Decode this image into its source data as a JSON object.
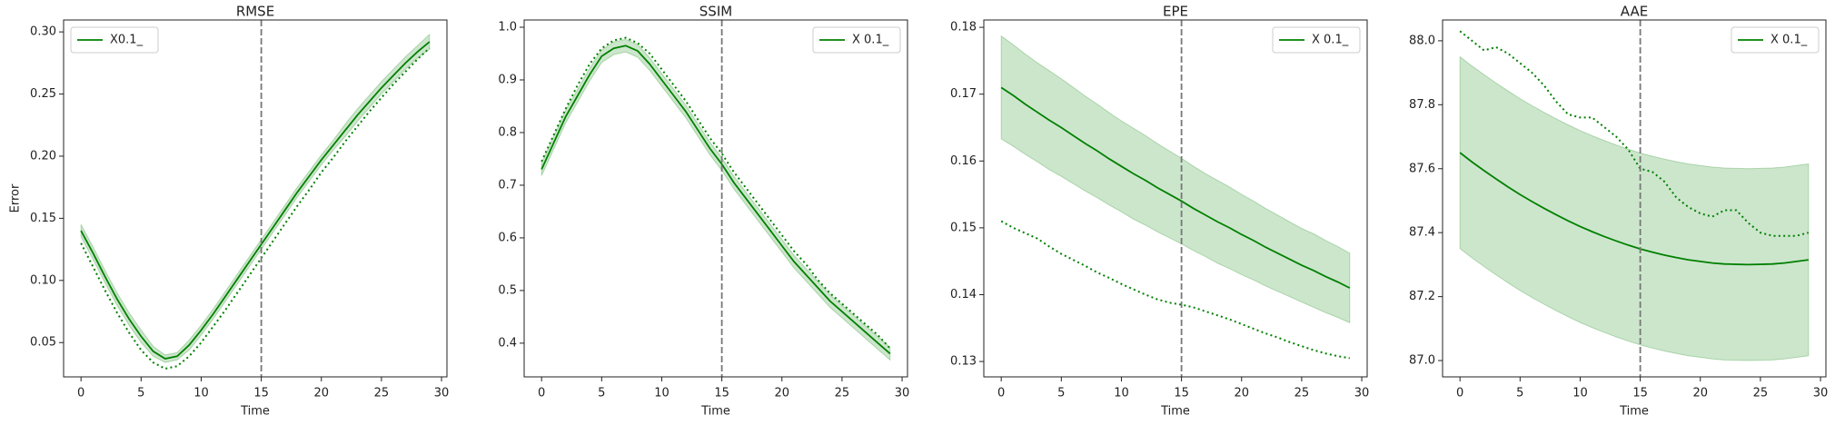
{
  "chart_data": [
    {
      "type": "line",
      "title": "RMSE",
      "xlabel": "Time",
      "ylabel": "Error",
      "legend": "upper left",
      "vline": 15,
      "x": [
        0,
        1,
        2,
        3,
        4,
        5,
        6,
        7,
        8,
        9,
        10,
        11,
        12,
        13,
        14,
        15,
        16,
        17,
        18,
        19,
        20,
        21,
        22,
        23,
        24,
        25,
        26,
        27,
        28,
        29
      ],
      "xlim": [
        -1.45,
        30.45
      ],
      "xticks": [
        0,
        5,
        10,
        15,
        20,
        25,
        30
      ],
      "ylim": [
        0.0224,
        0.3096
      ],
      "yticks": [
        0.05,
        {
          "value": 0.1,
          "label": "0.10"
        },
        0.15,
        {
          "value": 0.2,
          "label": "0.20"
        },
        0.25,
        {
          "value": 0.3,
          "label": "0.30"
        }
      ],
      "band": {
        "color": "#008000",
        "upper": [
          0.145,
          0.127,
          0.108,
          0.09,
          0.074,
          0.06,
          0.047,
          0.04,
          0.042,
          0.052,
          0.064,
          0.077,
          0.091,
          0.105,
          0.119,
          0.133,
          0.147,
          0.161,
          0.175,
          0.188,
          0.201,
          0.213,
          0.226,
          0.238,
          0.249,
          0.26,
          0.27,
          0.28,
          0.289,
          0.298
        ],
        "lower": [
          0.135,
          0.117,
          0.098,
          0.08,
          0.064,
          0.05,
          0.039,
          0.034,
          0.036,
          0.044,
          0.056,
          0.069,
          0.083,
          0.097,
          0.111,
          0.125,
          0.139,
          0.153,
          0.167,
          0.18,
          0.193,
          0.205,
          0.216,
          0.228,
          0.239,
          0.25,
          0.26,
          0.27,
          0.279,
          0.286
        ]
      },
      "series": [
        {
          "name": "X0.1_",
          "color": "#008000",
          "style": "solid",
          "values": [
            0.14,
            0.122,
            0.103,
            0.085,
            0.069,
            0.055,
            0.043,
            0.037,
            0.039,
            0.048,
            0.06,
            0.073,
            0.087,
            0.101,
            0.115,
            0.129,
            0.143,
            0.157,
            0.171,
            0.184,
            0.197,
            0.209,
            0.221,
            0.233,
            0.244,
            0.255,
            0.265,
            0.275,
            0.284,
            0.292
          ]
        },
        {
          "color": "#008000",
          "style": "dotted",
          "values": [
            0.13,
            0.111,
            0.092,
            0.074,
            0.058,
            0.044,
            0.034,
            0.029,
            0.031,
            0.039,
            0.05,
            0.063,
            0.076,
            0.09,
            0.104,
            0.118,
            0.132,
            0.146,
            0.16,
            0.173,
            0.187,
            0.199,
            0.212,
            0.224,
            0.236,
            0.247,
            0.258,
            0.268,
            0.278,
            0.287
          ]
        }
      ]
    },
    {
      "type": "line",
      "title": "SSIM",
      "xlabel": "Time",
      "legend": "upper right",
      "vline": 15,
      "x": [
        0,
        1,
        2,
        3,
        4,
        5,
        6,
        7,
        8,
        9,
        10,
        11,
        12,
        13,
        14,
        15,
        16,
        17,
        18,
        19,
        20,
        21,
        22,
        23,
        24,
        25,
        26,
        27,
        28,
        29
      ],
      "xlim": [
        -1.45,
        30.45
      ],
      "xticks": [
        0,
        5,
        10,
        15,
        20,
        25,
        30
      ],
      "ylim": [
        0.336,
        1.0138
      ],
      "yticks": [
        0.4,
        0.5,
        0.6,
        0.7,
        0.8,
        0.9,
        {
          "value": 1,
          "label": "1.0"
        }
      ],
      "band": {
        "color": "#008000",
        "upper": [
          0.742,
          0.792,
          0.842,
          0.882,
          0.922,
          0.957,
          0.972,
          0.977,
          0.967,
          0.942,
          0.912,
          0.882,
          0.852,
          0.817,
          0.782,
          0.752,
          0.717,
          0.687,
          0.657,
          0.627,
          0.597,
          0.567,
          0.542,
          0.517,
          0.492,
          0.472,
          0.452,
          0.432,
          0.412,
          0.392
        ],
        "lower": [
          0.718,
          0.768,
          0.818,
          0.858,
          0.898,
          0.933,
          0.948,
          0.953,
          0.943,
          0.918,
          0.888,
          0.858,
          0.828,
          0.793,
          0.758,
          0.728,
          0.693,
          0.663,
          0.633,
          0.603,
          0.573,
          0.543,
          0.518,
          0.493,
          0.468,
          0.448,
          0.428,
          0.408,
          0.388,
          0.368
        ]
      },
      "series": [
        {
          "name": "X 0.1_",
          "color": "#008000",
          "style": "solid",
          "values": [
            0.73,
            0.78,
            0.83,
            0.87,
            0.91,
            0.945,
            0.96,
            0.965,
            0.955,
            0.93,
            0.9,
            0.87,
            0.84,
            0.805,
            0.77,
            0.74,
            0.705,
            0.675,
            0.645,
            0.615,
            0.585,
            0.555,
            0.53,
            0.505,
            0.48,
            0.46,
            0.44,
            0.42,
            0.4,
            0.38
          ]
        },
        {
          "color": "#008000",
          "style": "dotted",
          "values": [
            0.745,
            0.795,
            0.845,
            0.89,
            0.93,
            0.96,
            0.975,
            0.98,
            0.97,
            0.95,
            0.92,
            0.89,
            0.86,
            0.825,
            0.79,
            0.76,
            0.725,
            0.695,
            0.665,
            0.635,
            0.605,
            0.575,
            0.55,
            0.52,
            0.495,
            0.475,
            0.455,
            0.435,
            0.415,
            0.39
          ]
        }
      ]
    },
    {
      "type": "line",
      "title": "EPE",
      "xlabel": "Time",
      "legend": "upper right",
      "vline": 15,
      "x": [
        0,
        1,
        2,
        3,
        4,
        5,
        6,
        7,
        8,
        9,
        10,
        11,
        12,
        13,
        14,
        15,
        16,
        17,
        18,
        19,
        20,
        21,
        22,
        23,
        24,
        25,
        26,
        27,
        28,
        29
      ],
      "xlim": [
        -1.45,
        30.45
      ],
      "xticks": [
        0,
        5,
        10,
        15,
        20,
        25,
        30
      ],
      "ylim": [
        0.1277,
        0.1811
      ],
      "yticks": [
        0.13,
        0.14,
        0.15,
        0.16,
        0.17,
        0.18
      ],
      "band": {
        "color": "#008000",
        "upper": [
          0.1787,
          0.1774,
          0.176,
          0.1747,
          0.1735,
          0.1723,
          0.171,
          0.1697,
          0.1685,
          0.1672,
          0.166,
          0.1649,
          0.1638,
          0.1626,
          0.1615,
          0.1604,
          0.1592,
          0.1581,
          0.1571,
          0.1561,
          0.155,
          0.154,
          0.1529,
          0.1519,
          0.1509,
          0.1499,
          0.1491,
          0.1481,
          0.1472,
          0.1462
        ],
        "lower": [
          0.1633,
          0.1622,
          0.161,
          0.1599,
          0.1587,
          0.1577,
          0.1566,
          0.1555,
          0.1545,
          0.1534,
          0.1524,
          0.1513,
          0.1504,
          0.1494,
          0.1485,
          0.1476,
          0.1466,
          0.1457,
          0.1447,
          0.1439,
          0.143,
          0.1422,
          0.1413,
          0.1405,
          0.1397,
          0.1389,
          0.1381,
          0.1373,
          0.1366,
          0.1358
        ]
      },
      "series": [
        {
          "name": "X 0.1_",
          "color": "#008000",
          "style": "solid",
          "values": [
            0.171,
            0.1698,
            0.1685,
            0.1673,
            0.1661,
            0.165,
            0.1638,
            0.1626,
            0.1615,
            0.1603,
            0.1592,
            0.1581,
            0.1571,
            0.156,
            0.155,
            0.154,
            0.1529,
            0.1519,
            0.1509,
            0.15,
            0.149,
            0.1481,
            0.1471,
            0.1462,
            0.1453,
            0.1444,
            0.1436,
            0.1427,
            0.1419,
            0.141
          ]
        },
        {
          "color": "#008000",
          "style": "dotted",
          "values": [
            0.151,
            0.15,
            0.1492,
            0.1484,
            0.1472,
            0.1461,
            0.1452,
            0.1443,
            0.1433,
            0.1425,
            0.1416,
            0.1408,
            0.14,
            0.1393,
            0.1388,
            0.1385,
            0.1381,
            0.1375,
            0.1369,
            0.1363,
            0.1356,
            0.1349,
            0.1342,
            0.1336,
            0.1329,
            0.1323,
            0.1317,
            0.1312,
            0.1308,
            0.1305
          ]
        }
      ]
    },
    {
      "type": "line",
      "title": "AAE",
      "xlabel": "Time",
      "legend": "upper right",
      "vline": 15,
      "x": [
        0,
        1,
        2,
        3,
        4,
        5,
        6,
        7,
        8,
        9,
        10,
        11,
        12,
        13,
        14,
        15,
        16,
        17,
        18,
        19,
        20,
        21,
        22,
        23,
        24,
        25,
        26,
        27,
        28,
        29
      ],
      "xlim": [
        -1.45,
        30.45
      ],
      "xticks": [
        0,
        5,
        10,
        15,
        20,
        25,
        30
      ],
      "ylim": [
        86.949,
        88.065
      ],
      "yticks": [
        {
          "value": 87,
          "label": "87.0"
        },
        87.2,
        87.4,
        87.6,
        87.8,
        {
          "value": 88,
          "label": "88.0"
        }
      ],
      "band": {
        "color": "#008000",
        "upper": [
          87.95,
          87.921,
          87.894,
          87.868,
          87.843,
          87.819,
          87.797,
          87.776,
          87.756,
          87.737,
          87.719,
          87.703,
          87.688,
          87.674,
          87.661,
          87.649,
          87.639,
          87.63,
          87.622,
          87.615,
          87.61,
          87.605,
          87.602,
          87.601,
          87.6,
          87.601,
          87.602,
          87.605,
          87.61,
          87.615
        ],
        "lower": [
          87.35,
          87.321,
          87.294,
          87.268,
          87.243,
          87.219,
          87.197,
          87.176,
          87.156,
          87.137,
          87.119,
          87.103,
          87.088,
          87.074,
          87.061,
          87.049,
          87.039,
          87.03,
          87.022,
          87.015,
          87.01,
          87.005,
          87.002,
          87.001,
          87.0,
          87.001,
          87.002,
          87.005,
          87.01,
          87.015
        ]
      },
      "series": [
        {
          "name": "X 0.1_",
          "color": "#008000",
          "style": "solid",
          "values": [
            87.65,
            87.621,
            87.594,
            87.568,
            87.543,
            87.519,
            87.497,
            87.476,
            87.456,
            87.437,
            87.419,
            87.403,
            87.388,
            87.374,
            87.361,
            87.349,
            87.339,
            87.33,
            87.322,
            87.315,
            87.31,
            87.305,
            87.302,
            87.301,
            87.3,
            87.301,
            87.302,
            87.305,
            87.31,
            87.315
          ]
        },
        {
          "color": "#008000",
          "style": "dotted",
          "values": [
            88.03,
            88.0,
            87.97,
            87.98,
            87.96,
            87.93,
            87.9,
            87.86,
            87.81,
            87.77,
            87.76,
            87.76,
            87.73,
            87.7,
            87.66,
            87.6,
            87.59,
            87.56,
            87.51,
            87.48,
            87.46,
            87.45,
            87.47,
            87.47,
            87.43,
            87.4,
            87.39,
            87.39,
            87.39,
            87.4
          ]
        }
      ]
    }
  ]
}
